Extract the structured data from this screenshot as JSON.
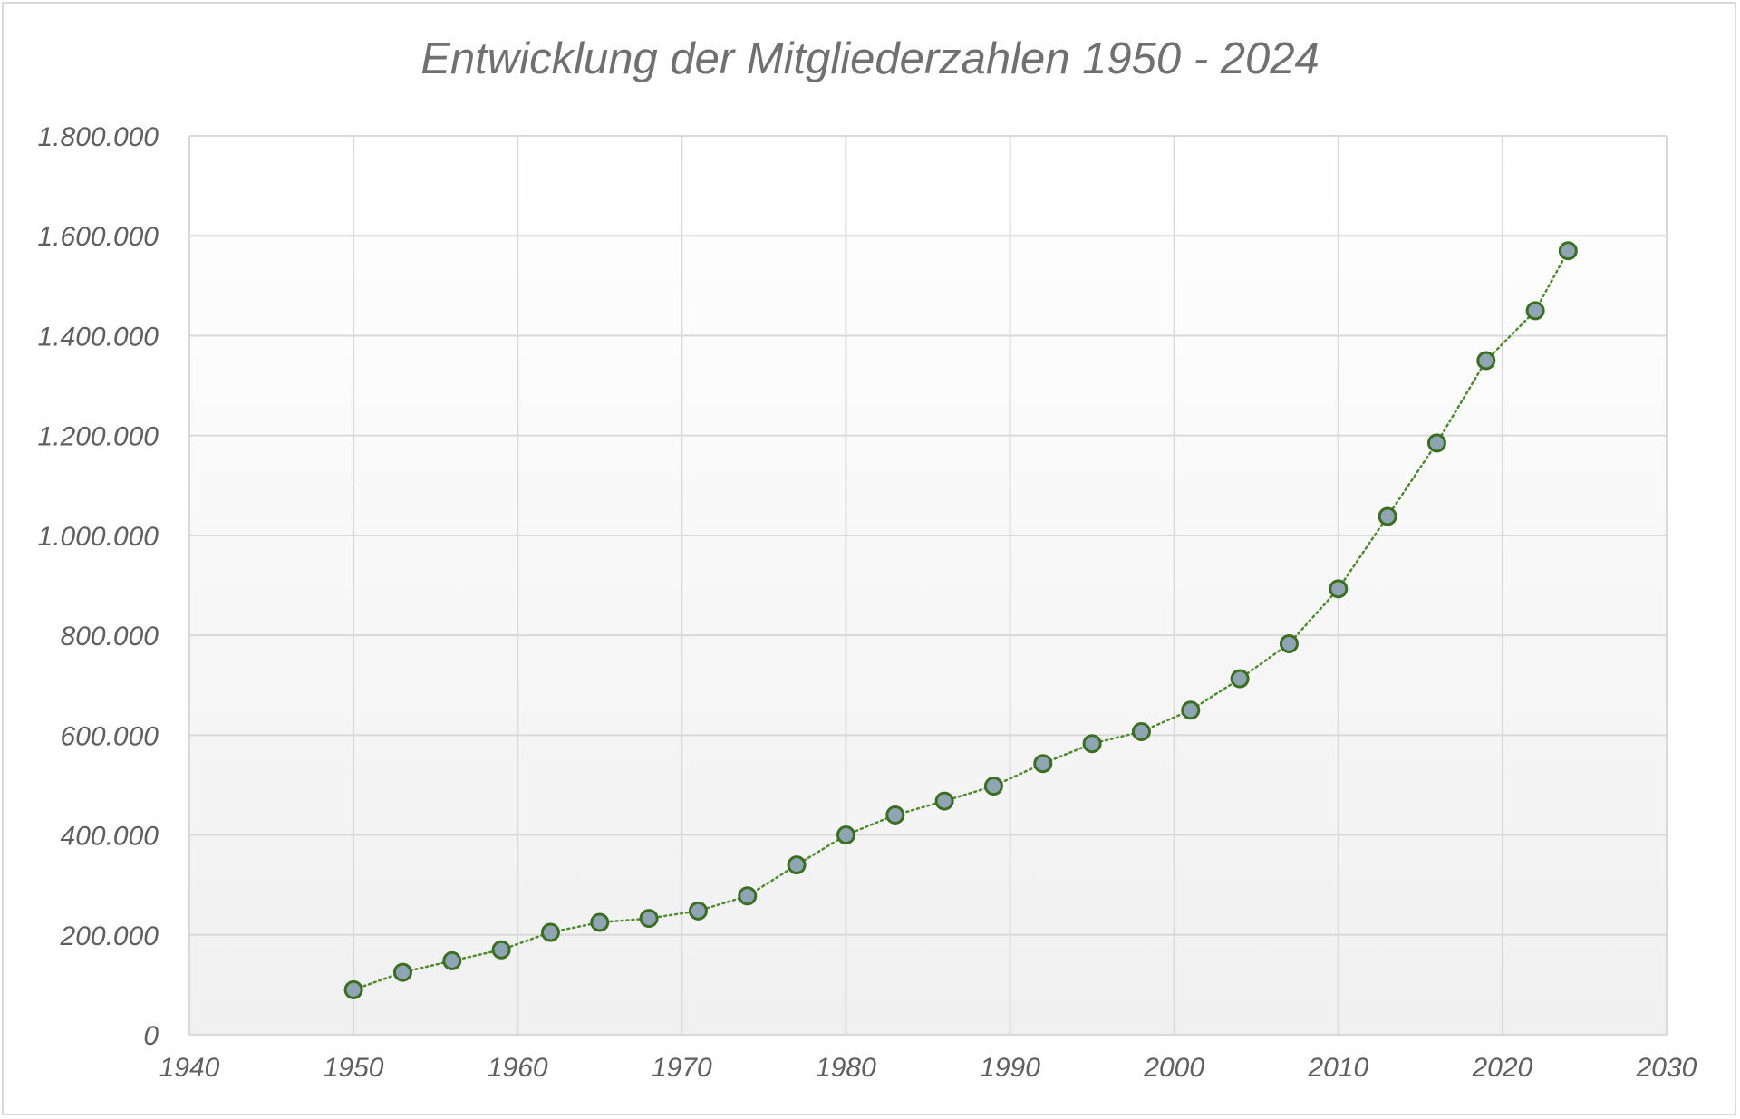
{
  "chart_data": {
    "type": "scatter",
    "title": "Entwicklung der Mitgliederzahlen 1950 - 2024",
    "xlabel": "",
    "ylabel": "",
    "xlim": [
      1940,
      2030
    ],
    "ylim": [
      0,
      1800000
    ],
    "x_ticks": [
      1940,
      1950,
      1960,
      1970,
      1980,
      1990,
      2000,
      2010,
      2020,
      2030
    ],
    "y_ticks": [
      0,
      200000,
      400000,
      600000,
      800000,
      1000000,
      1200000,
      1400000,
      1600000,
      1800000
    ],
    "x_tick_labels": [
      "1940",
      "1950",
      "1960",
      "1970",
      "1980",
      "1990",
      "2000",
      "2010",
      "2020",
      "2030"
    ],
    "y_tick_labels": [
      "0",
      "200.000",
      "400.000",
      "600.000",
      "800.000",
      "1.000.000",
      "1.200.000",
      "1.400.000",
      "1.600.000",
      "1.800.000"
    ],
    "grid": true,
    "legend": "none",
    "line_style": "dotted",
    "series": [
      {
        "x": [
          1950,
          1953,
          1956,
          1959,
          1962,
          1965,
          1968,
          1971,
          1974,
          1977,
          1980,
          1983,
          1986,
          1989,
          1992,
          1995,
          1998,
          2001,
          2004,
          2007,
          2010,
          2013,
          2016,
          2019,
          2022,
          2024
        ],
        "values": [
          90000,
          125000,
          148000,
          170000,
          205000,
          225000,
          233000,
          248000,
          278000,
          340000,
          400000,
          440000,
          468000,
          498000,
          543000,
          583000,
          607000,
          650000,
          713000,
          783000,
          893000,
          1038000,
          1185000,
          1350000,
          1450000,
          1570000
        ]
      }
    ],
    "colors": {
      "marker_fill": "#8fa5b4",
      "marker_stroke": "#3b6e22",
      "line": "#4f8a2f",
      "grid": "#d9d9d9",
      "axis_text": "#5f5f5f",
      "title": "#707070"
    }
  }
}
